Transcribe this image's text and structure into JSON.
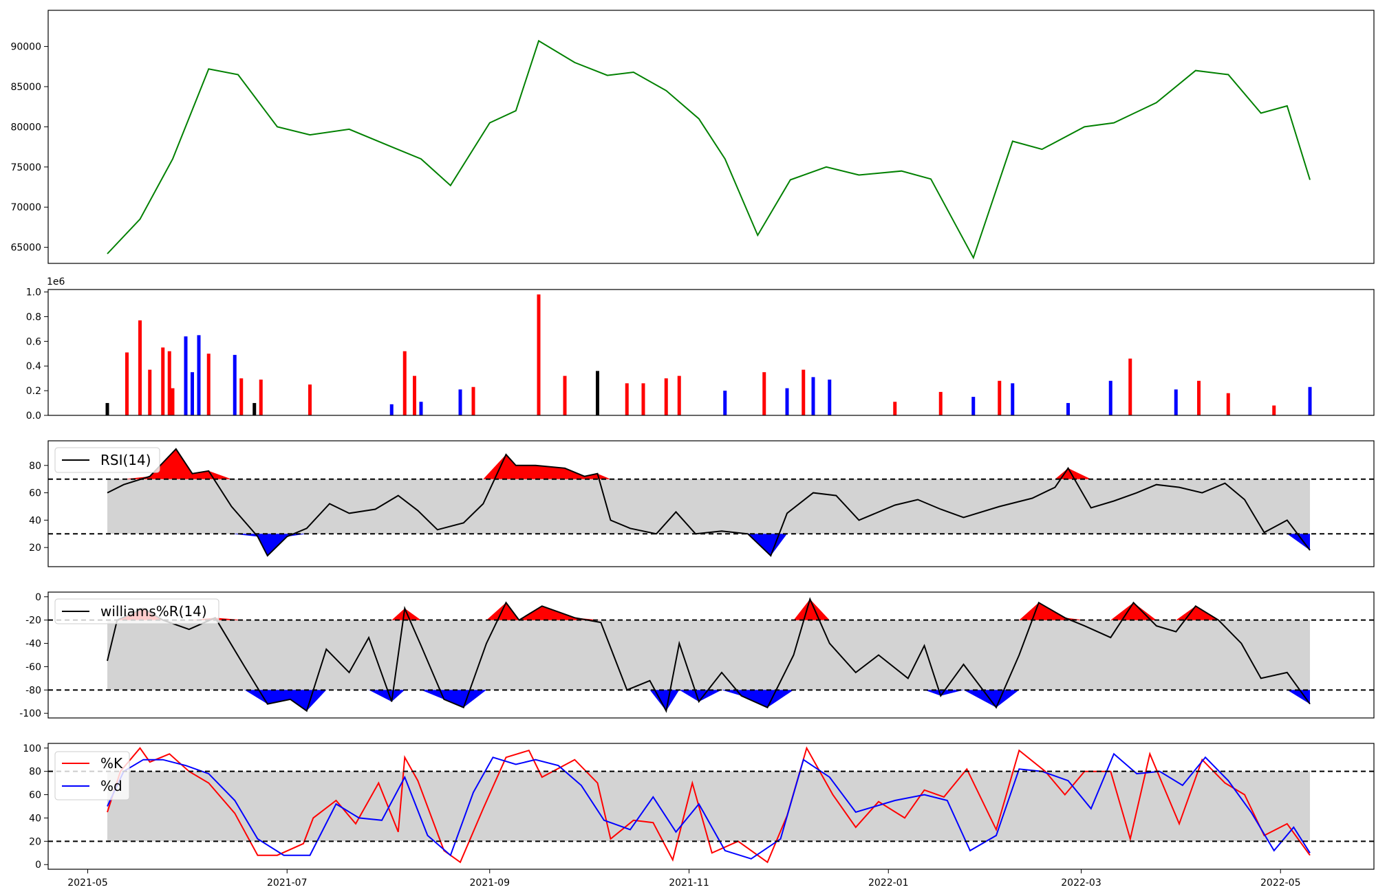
{
  "chart_data": [
    {
      "type": "line",
      "name": "price",
      "color": "#008000",
      "ylim": [
        63000,
        94500
      ],
      "yticks": [
        65000,
        70000,
        75000,
        80000,
        85000,
        90000
      ],
      "x": [
        "2021-05-07",
        "2021-05-17",
        "2021-05-27",
        "2021-06-07",
        "2021-06-16",
        "2021-06-28",
        "2021-07-08",
        "2021-07-20",
        "2021-08-02",
        "2021-08-11",
        "2021-08-20",
        "2021-09-01",
        "2021-09-09",
        "2021-09-16",
        "2021-09-27",
        "2021-10-07",
        "2021-10-15",
        "2021-10-25",
        "2021-11-04",
        "2021-11-12",
        "2021-11-22",
        "2021-12-02",
        "2021-12-13",
        "2021-12-23",
        "2022-01-05",
        "2022-01-14",
        "2022-01-27",
        "2022-02-08",
        "2022-02-17",
        "2022-03-02",
        "2022-03-11",
        "2022-03-24",
        "2022-04-05",
        "2022-04-15",
        "2022-04-25",
        "2022-05-03",
        "2022-05-10"
      ],
      "values": [
        64200,
        68500,
        76000,
        87200,
        86500,
        80000,
        79000,
        79700,
        77500,
        76000,
        72700,
        80500,
        82000,
        90700,
        88000,
        86400,
        86800,
        84500,
        81000,
        76000,
        66500,
        73400,
        75000,
        74000,
        74500,
        73500,
        63700,
        78200,
        77200,
        80000,
        80500,
        83000,
        87000,
        86500,
        81700,
        82600,
        73400
      ]
    },
    {
      "type": "bar",
      "name": "volume",
      "multiplier_label": "1e6",
      "ylim": [
        0,
        1.02
      ],
      "yticks": [
        "0.0",
        "0.2",
        "0.4",
        "0.6",
        "0.8",
        "1.0"
      ],
      "colors": {
        "up": "#ff0000",
        "down": "#0000ff",
        "flat": "#000000"
      },
      "x": [
        "2021-05-07",
        "2021-05-13",
        "2021-05-17",
        "2021-05-20",
        "2021-05-24",
        "2021-05-26",
        "2021-05-27",
        "2021-05-31",
        "2021-06-02",
        "2021-06-04",
        "2021-06-07",
        "2021-06-15",
        "2021-06-17",
        "2021-06-21",
        "2021-06-23",
        "2021-07-08",
        "2021-08-02",
        "2021-08-06",
        "2021-08-09",
        "2021-08-11",
        "2021-08-23",
        "2021-08-27",
        "2021-09-16",
        "2021-09-24",
        "2021-10-04",
        "2021-10-13",
        "2021-10-18",
        "2021-10-25",
        "2021-10-29",
        "2021-11-12",
        "2021-11-24",
        "2021-12-01",
        "2021-12-06",
        "2021-12-09",
        "2021-12-14",
        "2022-01-03",
        "2022-01-17",
        "2022-01-27",
        "2022-02-04",
        "2022-02-08",
        "2022-02-25",
        "2022-03-10",
        "2022-03-16",
        "2022-03-30",
        "2022-04-06",
        "2022-04-15",
        "2022-04-29",
        "2022-05-10"
      ],
      "values": [
        0.1,
        0.51,
        0.77,
        0.37,
        0.55,
        0.52,
        0.22,
        0.64,
        0.35,
        0.65,
        0.5,
        0.49,
        0.3,
        0.1,
        0.29,
        0.25,
        0.09,
        0.52,
        0.32,
        0.11,
        0.21,
        0.23,
        0.98,
        0.32,
        0.36,
        0.26,
        0.26,
        0.3,
        0.32,
        0.2,
        0.35,
        0.22,
        0.37,
        0.31,
        0.29,
        0.11,
        0.19,
        0.15,
        0.28,
        0.26,
        0.1,
        0.28,
        0.46,
        0.21,
        0.28,
        0.18,
        0.08,
        0.23
      ],
      "dirs": [
        "flat",
        "up",
        "up",
        "up",
        "up",
        "up",
        "up",
        "down",
        "down",
        "down",
        "up",
        "down",
        "up",
        "flat",
        "up",
        "up",
        "down",
        "up",
        "up",
        "down",
        "down",
        "up",
        "up",
        "up",
        "flat",
        "up",
        "up",
        "up",
        "up",
        "down",
        "up",
        "down",
        "up",
        "down",
        "down",
        "up",
        "up",
        "down",
        "up",
        "down",
        "down",
        "down",
        "up",
        "down",
        "up",
        "up",
        "up",
        "down"
      ]
    },
    {
      "type": "line",
      "name": "RSI",
      "legend": "RSI(14)",
      "ylim": [
        6,
        98
      ],
      "yticks": [
        20,
        40,
        60,
        80
      ],
      "thresholds": [
        30,
        70
      ],
      "fill_colors": {
        "over": "#ff0000",
        "under": "#0000ff",
        "band": "#d3d3d3"
      },
      "x": [
        "2021-05-07",
        "2021-05-12",
        "2021-05-20",
        "2021-05-28",
        "2021-06-02",
        "2021-06-07",
        "2021-06-14",
        "2021-06-22",
        "2021-06-25",
        "2021-07-01",
        "2021-07-07",
        "2021-07-14",
        "2021-07-20",
        "2021-07-28",
        "2021-08-04",
        "2021-08-10",
        "2021-08-16",
        "2021-08-24",
        "2021-08-30",
        "2021-09-06",
        "2021-09-09",
        "2021-09-15",
        "2021-09-24",
        "2021-09-30",
        "2021-10-04",
        "2021-10-08",
        "2021-10-14",
        "2021-10-22",
        "2021-10-28",
        "2021-11-03",
        "2021-11-11",
        "2021-11-19",
        "2021-11-26",
        "2021-12-01",
        "2021-12-09",
        "2021-12-16",
        "2021-12-23",
        "2022-01-03",
        "2022-01-10",
        "2022-01-17",
        "2022-01-24",
        "2022-02-04",
        "2022-02-14",
        "2022-02-21",
        "2022-02-25",
        "2022-03-04",
        "2022-03-11",
        "2022-03-18",
        "2022-03-24",
        "2022-03-31",
        "2022-04-07",
        "2022-04-14",
        "2022-04-20",
        "2022-04-26",
        "2022-05-03",
        "2022-05-10"
      ],
      "values": [
        60,
        66,
        72,
        92,
        74,
        76,
        50,
        28,
        14,
        28,
        34,
        52,
        45,
        48,
        58,
        47,
        33,
        38,
        52,
        88,
        80,
        80,
        78,
        72,
        74,
        40,
        34,
        30,
        46,
        30,
        32,
        30,
        14,
        45,
        60,
        58,
        40,
        51,
        55,
        48,
        42,
        50,
        56,
        64,
        78,
        49,
        54,
        60,
        66,
        64,
        60,
        67,
        55,
        31,
        40,
        18
      ]
    },
    {
      "type": "line",
      "name": "williams",
      "legend": "williams%R(14)",
      "ylim": [
        -104,
        4
      ],
      "yticks": [
        0,
        -20,
        -40,
        -60,
        -80,
        -100
      ],
      "thresholds": [
        -20,
        -80
      ],
      "fill_colors": {
        "over": "#ff0000",
        "under": "#0000ff",
        "band": "#d3d3d3"
      },
      "x": [
        "2021-05-07",
        "2021-05-10",
        "2021-05-18",
        "2021-05-24",
        "2021-06-01",
        "2021-06-09",
        "2021-06-18",
        "2021-06-25",
        "2021-07-02",
        "2021-07-07",
        "2021-07-13",
        "2021-07-20",
        "2021-07-26",
        "2021-08-02",
        "2021-08-06",
        "2021-08-11",
        "2021-08-18",
        "2021-08-24",
        "2021-08-31",
        "2021-09-06",
        "2021-09-10",
        "2021-09-17",
        "2021-09-27",
        "2021-10-05",
        "2021-10-13",
        "2021-10-20",
        "2021-10-25",
        "2021-10-29",
        "2021-11-04",
        "2021-11-11",
        "2021-11-17",
        "2021-11-25",
        "2021-12-03",
        "2021-12-08",
        "2021-12-14",
        "2021-12-22",
        "2021-12-29",
        "2022-01-07",
        "2022-01-12",
        "2022-01-17",
        "2022-01-24",
        "2022-02-03",
        "2022-02-10",
        "2022-02-16",
        "2022-02-24",
        "2022-03-02",
        "2022-03-10",
        "2022-03-17",
        "2022-03-24",
        "2022-03-30",
        "2022-04-05",
        "2022-04-12",
        "2022-04-19",
        "2022-04-25",
        "2022-05-03",
        "2022-05-10"
      ],
      "values": [
        -55,
        -20,
        -10,
        -20,
        -28,
        -18,
        -60,
        -92,
        -88,
        -98,
        -45,
        -65,
        -35,
        -90,
        -10,
        -42,
        -88,
        -95,
        -40,
        -5,
        -20,
        -8,
        -18,
        -22,
        -80,
        -72,
        -98,
        -40,
        -90,
        -65,
        -85,
        -95,
        -50,
        -2,
        -40,
        -65,
        -50,
        -70,
        -42,
        -85,
        -58,
        -95,
        -50,
        -5,
        -18,
        -25,
        -35,
        -5,
        -25,
        -30,
        -8,
        -20,
        -40,
        -70,
        -65,
        -92
      ]
    },
    {
      "type": "line",
      "name": "stochastic",
      "ylim": [
        -4,
        104
      ],
      "yticks": [
        0,
        20,
        40,
        60,
        80,
        100
      ],
      "thresholds": [
        20,
        80
      ],
      "band_color": "#d3d3d3",
      "series": [
        {
          "name": "%K",
          "color": "#ff0000",
          "x": [
            "2021-05-07",
            "2021-05-11",
            "2021-05-17",
            "2021-05-20",
            "2021-05-26",
            "2021-06-01",
            "2021-06-07",
            "2021-06-15",
            "2021-06-22",
            "2021-06-28",
            "2021-07-06",
            "2021-07-09",
            "2021-07-16",
            "2021-07-22",
            "2021-07-29",
            "2021-08-04",
            "2021-08-06",
            "2021-08-10",
            "2021-08-18",
            "2021-08-23",
            "2021-08-30",
            "2021-09-06",
            "2021-09-13",
            "2021-09-17",
            "2021-09-27",
            "2021-10-04",
            "2021-10-08",
            "2021-10-15",
            "2021-10-21",
            "2021-10-27",
            "2021-11-02",
            "2021-11-08",
            "2021-11-16",
            "2021-11-25",
            "2021-12-01",
            "2021-12-07",
            "2021-12-15",
            "2021-12-22",
            "2021-12-29",
            "2022-01-06",
            "2022-01-12",
            "2022-01-18",
            "2022-01-25",
            "2022-02-03",
            "2022-02-10",
            "2022-02-18",
            "2022-02-24",
            "2022-03-02",
            "2022-03-10",
            "2022-03-16",
            "2022-03-22",
            "2022-03-31",
            "2022-04-07",
            "2022-04-14",
            "2022-04-20",
            "2022-04-26",
            "2022-05-03",
            "2022-05-10"
          ],
          "values": [
            45,
            80,
            100,
            88,
            95,
            80,
            70,
            44,
            8,
            8,
            18,
            40,
            55,
            35,
            70,
            28,
            92,
            72,
            12,
            2,
            48,
            92,
            98,
            75,
            90,
            70,
            22,
            38,
            36,
            4,
            70,
            10,
            20,
            2,
            42,
            100,
            60,
            32,
            54,
            40,
            64,
            58,
            82,
            30,
            98,
            80,
            60,
            80,
            80,
            22,
            95,
            35,
            90,
            70,
            60,
            25,
            35,
            8
          ]
        },
        {
          "name": "%d",
          "color": "#0000ff",
          "x": [
            "2021-05-07",
            "2021-05-12",
            "2021-05-18",
            "2021-05-24",
            "2021-05-31",
            "2021-06-07",
            "2021-06-15",
            "2021-06-22",
            "2021-06-30",
            "2021-07-08",
            "2021-07-16",
            "2021-07-23",
            "2021-07-30",
            "2021-08-06",
            "2021-08-13",
            "2021-08-20",
            "2021-08-27",
            "2021-09-02",
            "2021-09-09",
            "2021-09-15",
            "2021-09-22",
            "2021-09-29",
            "2021-10-06",
            "2021-10-14",
            "2021-10-21",
            "2021-10-28",
            "2021-11-04",
            "2021-11-12",
            "2021-11-20",
            "2021-11-29",
            "2021-12-06",
            "2021-12-14",
            "2021-12-22",
            "2022-01-03",
            "2022-01-12",
            "2022-01-19",
            "2022-01-26",
            "2022-02-03",
            "2022-02-10",
            "2022-02-17",
            "2022-02-25",
            "2022-03-04",
            "2022-03-11",
            "2022-03-18",
            "2022-03-25",
            "2022-04-01",
            "2022-04-08",
            "2022-04-15",
            "2022-04-22",
            "2022-04-29",
            "2022-05-05",
            "2022-05-10"
          ],
          "values": [
            50,
            80,
            90,
            90,
            85,
            78,
            55,
            22,
            8,
            8,
            52,
            40,
            38,
            75,
            25,
            8,
            62,
            92,
            86,
            90,
            85,
            68,
            38,
            30,
            58,
            28,
            52,
            12,
            5,
            22,
            90,
            75,
            45,
            55,
            60,
            55,
            12,
            25,
            82,
            80,
            72,
            48,
            95,
            78,
            80,
            68,
            92,
            72,
            45,
            12,
            32,
            10
          ]
        }
      ],
      "xticks": [
        "2021-05",
        "2021-07",
        "2021-09",
        "2021-11",
        "2022-01",
        "2022-03",
        "2022-05"
      ]
    }
  ]
}
